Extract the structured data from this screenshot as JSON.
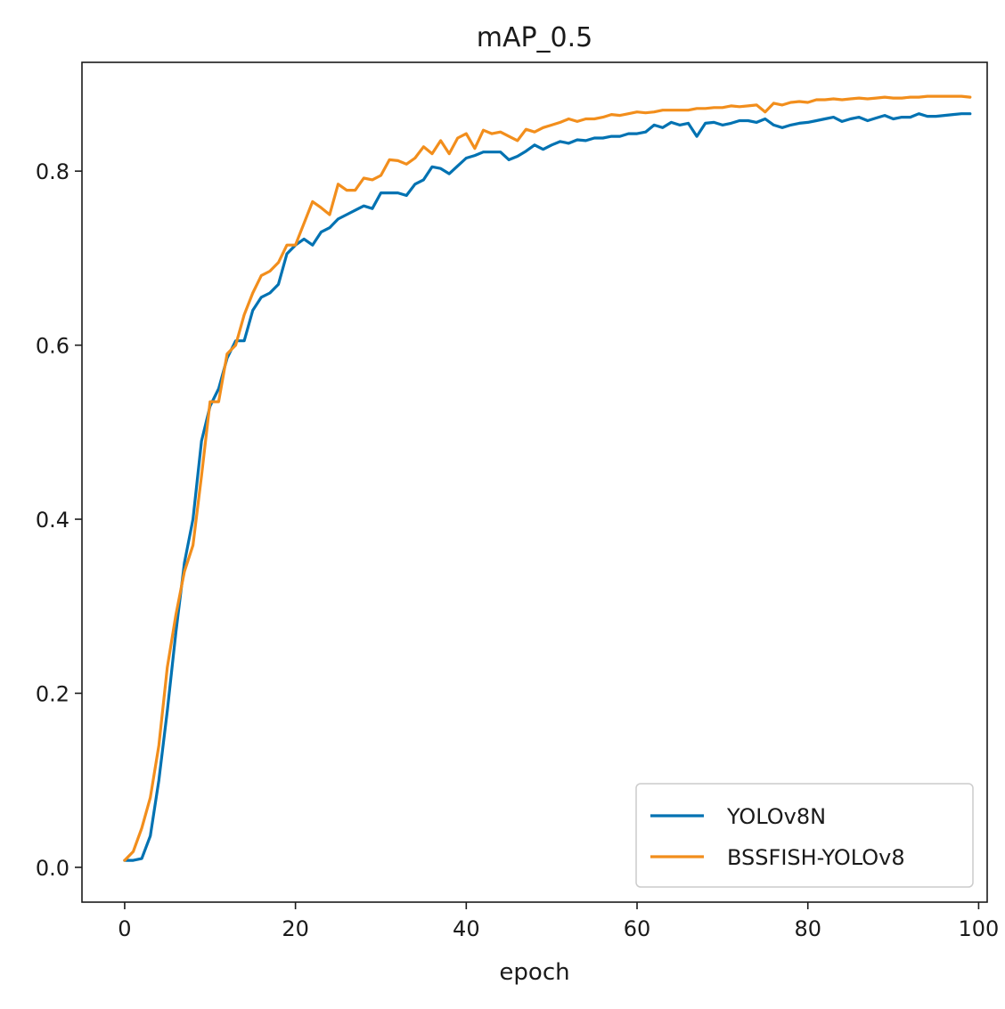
{
  "chart_data": {
    "type": "line",
    "title": "mAP_0.5",
    "xlabel": "epoch",
    "ylabel": "",
    "xlim": [
      -5,
      101
    ],
    "ylim": [
      -0.04,
      0.925
    ],
    "xticks": [
      0,
      20,
      40,
      60,
      80,
      100
    ],
    "yticks": [
      0.0,
      0.2,
      0.4,
      0.6,
      0.8
    ],
    "xtick_labels": [
      "0",
      "20",
      "40",
      "60",
      "80",
      "100"
    ],
    "ytick_labels": [
      "0.0",
      "0.2",
      "0.4",
      "0.6",
      "0.8"
    ],
    "grid": false,
    "legend_position": "bottom-right",
    "series": [
      {
        "name": "YOLOv8N",
        "color": "#0072b2",
        "values": [
          0.008,
          0.008,
          0.01,
          0.036,
          0.1,
          0.18,
          0.27,
          0.35,
          0.4,
          0.49,
          0.53,
          0.55,
          0.585,
          0.605,
          0.605,
          0.64,
          0.655,
          0.66,
          0.67,
          0.705,
          0.715,
          0.722,
          0.715,
          0.73,
          0.735,
          0.745,
          0.75,
          0.755,
          0.76,
          0.757,
          0.775,
          0.775,
          0.775,
          0.772,
          0.785,
          0.79,
          0.805,
          0.803,
          0.797,
          0.806,
          0.815,
          0.818,
          0.822,
          0.822,
          0.822,
          0.813,
          0.817,
          0.823,
          0.83,
          0.825,
          0.83,
          0.834,
          0.832,
          0.836,
          0.835,
          0.838,
          0.838,
          0.84,
          0.84,
          0.843,
          0.843,
          0.845,
          0.853,
          0.85,
          0.856,
          0.853,
          0.855,
          0.84,
          0.855,
          0.856,
          0.853,
          0.855,
          0.858,
          0.858,
          0.856,
          0.86,
          0.853,
          0.85,
          0.853,
          0.855,
          0.856,
          0.858,
          0.86,
          0.862,
          0.857,
          0.86,
          0.862,
          0.858,
          0.861,
          0.864,
          0.86,
          0.862,
          0.862,
          0.866,
          0.863,
          0.863,
          0.864,
          0.865,
          0.866,
          0.866
        ]
      },
      {
        "name": "BSSFISH-YOLOv8",
        "color": "#f28e1c",
        "values": [
          0.008,
          0.018,
          0.045,
          0.08,
          0.14,
          0.23,
          0.29,
          0.34,
          0.37,
          0.45,
          0.535,
          0.535,
          0.59,
          0.6,
          0.635,
          0.66,
          0.68,
          0.685,
          0.695,
          0.715,
          0.715,
          0.74,
          0.765,
          0.758,
          0.75,
          0.785,
          0.778,
          0.778,
          0.792,
          0.79,
          0.795,
          0.813,
          0.812,
          0.808,
          0.815,
          0.828,
          0.82,
          0.835,
          0.82,
          0.838,
          0.843,
          0.826,
          0.847,
          0.843,
          0.845,
          0.84,
          0.835,
          0.848,
          0.845,
          0.85,
          0.853,
          0.856,
          0.86,
          0.857,
          0.86,
          0.86,
          0.862,
          0.865,
          0.864,
          0.866,
          0.868,
          0.867,
          0.868,
          0.87,
          0.87,
          0.87,
          0.87,
          0.872,
          0.872,
          0.873,
          0.873,
          0.875,
          0.874,
          0.875,
          0.876,
          0.868,
          0.878,
          0.876,
          0.879,
          0.88,
          0.879,
          0.882,
          0.882,
          0.883,
          0.882,
          0.883,
          0.884,
          0.883,
          0.884,
          0.885,
          0.884,
          0.884,
          0.885,
          0.885,
          0.886,
          0.886,
          0.886,
          0.886,
          0.886,
          0.885
        ]
      }
    ]
  }
}
